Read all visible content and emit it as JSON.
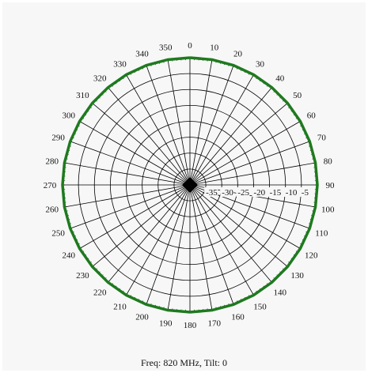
{
  "caption": "Freq: 820 MHz, Tilt: 0",
  "chart_data": {
    "type": "polar",
    "title": "",
    "angle_unit": "degrees",
    "angle_ticks": [
      0,
      10,
      20,
      30,
      40,
      50,
      60,
      70,
      80,
      90,
      100,
      110,
      120,
      130,
      140,
      150,
      160,
      170,
      180,
      190,
      200,
      210,
      220,
      230,
      240,
      250,
      260,
      270,
      280,
      290,
      300,
      310,
      320,
      330,
      340,
      350
    ],
    "radial_ticks": [
      -35,
      -30,
      -25,
      -20,
      -15,
      -10,
      -5
    ],
    "radial_range": [
      -40,
      0
    ],
    "grid": true,
    "series": [
      {
        "theta": [
          0,
          10,
          20,
          30,
          40,
          50,
          60,
          70,
          80,
          90,
          100,
          110,
          120,
          130,
          140,
          150,
          160,
          170,
          180,
          190,
          200,
          210,
          220,
          230,
          240,
          250,
          260,
          270,
          280,
          290,
          300,
          310,
          320,
          330,
          340,
          350,
          360
        ],
        "r": [
          0,
          0,
          0,
          0,
          0,
          0,
          0,
          0,
          0,
          0,
          0,
          0,
          0,
          0,
          0,
          0,
          0,
          0,
          0,
          0,
          0,
          0,
          0,
          0,
          0,
          0,
          0,
          0,
          0,
          0,
          0,
          0,
          0,
          0,
          0,
          0,
          0
        ],
        "color": "#1e7a1e"
      }
    ],
    "colors": {
      "grid": "#000000",
      "pattern": "#1e7a1e",
      "background": "#f7f7f7"
    }
  }
}
